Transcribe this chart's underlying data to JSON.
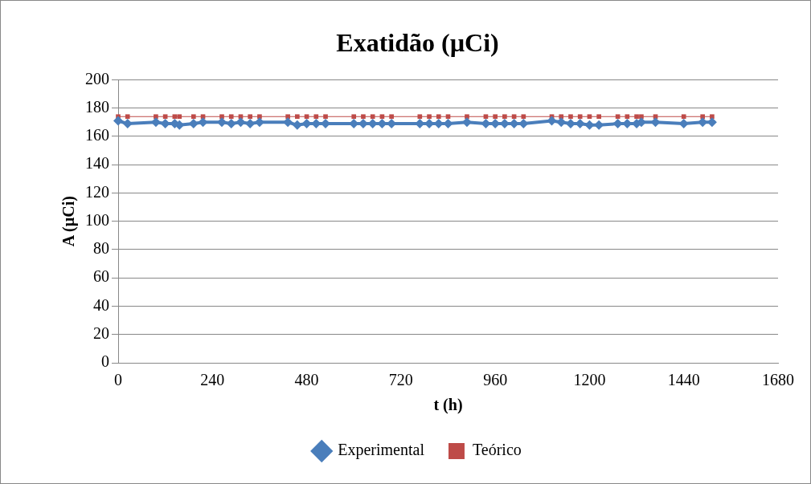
{
  "chart_data": {
    "type": "line",
    "title": "Exatidão (µCi)",
    "xlabel": "t (h)",
    "ylabel": "A (µCi)",
    "x": [
      0,
      24,
      96,
      120,
      144,
      156,
      192,
      216,
      264,
      288,
      312,
      336,
      360,
      432,
      456,
      480,
      504,
      528,
      600,
      624,
      648,
      672,
      696,
      768,
      792,
      816,
      840,
      888,
      936,
      960,
      984,
      1008,
      1032,
      1104,
      1128,
      1152,
      1176,
      1200,
      1224,
      1272,
      1296,
      1320,
      1332,
      1368,
      1440,
      1488,
      1512
    ],
    "series": [
      {
        "name": "Experimental",
        "color": "#4a7ebb",
        "marker": "diamond",
        "values": [
          171,
          169,
          170,
          169,
          169,
          168,
          169,
          170,
          170,
          169,
          170,
          169,
          170,
          170,
          168,
          169,
          169,
          169,
          169,
          169,
          169,
          169,
          169,
          169,
          169,
          169,
          169,
          170,
          169,
          169,
          169,
          169,
          169,
          171,
          170,
          169,
          169,
          168,
          168,
          169,
          169,
          169,
          170,
          170,
          169,
          170,
          170
        ]
      },
      {
        "name": "Teórico",
        "color": "#be4b48",
        "marker": "square",
        "values": [
          174,
          174,
          174,
          174,
          174,
          174,
          174,
          174,
          174,
          174,
          174,
          174,
          174,
          174,
          174,
          174,
          174,
          174,
          174,
          174,
          174,
          174,
          174,
          174,
          174,
          174,
          174,
          174,
          174,
          174,
          174,
          174,
          174,
          174,
          174,
          174,
          174,
          174,
          174,
          174,
          174,
          174,
          174,
          174,
          174,
          174,
          174
        ]
      }
    ],
    "xlim": [
      0,
      1680
    ],
    "xticks": [
      0,
      240,
      480,
      720,
      960,
      1200,
      1440,
      1680
    ],
    "ylim": [
      0,
      200
    ],
    "yticks": [
      0,
      20,
      40,
      60,
      80,
      100,
      120,
      140,
      160,
      180,
      200
    ],
    "grid": "y",
    "legend": "bottom",
    "line_style": "solid"
  }
}
